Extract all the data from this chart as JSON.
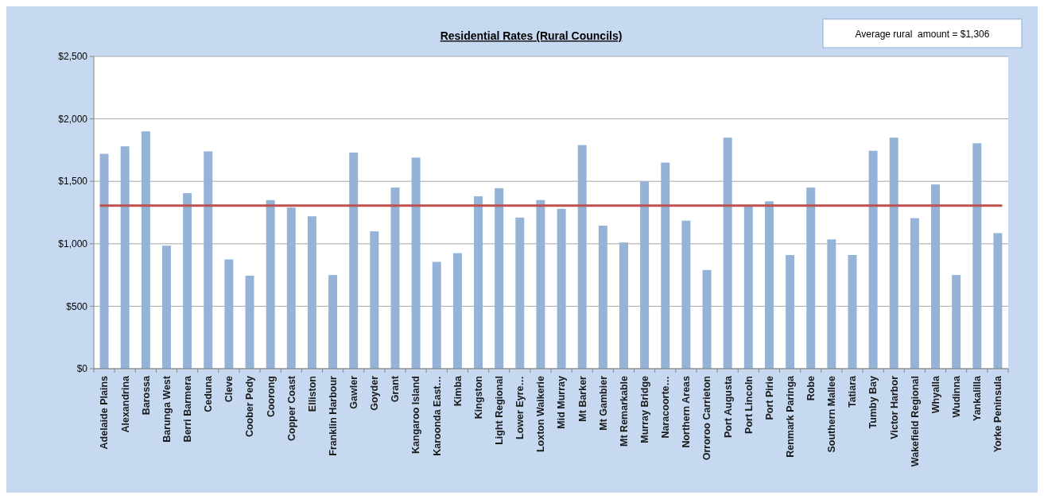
{
  "chart_data": {
    "type": "bar",
    "title": "Residential Rates (Rural Councils)",
    "categories": [
      "Adelaide Plains",
      "Alexandrina",
      "Barossa",
      "Barunga West",
      "Berri Barmera",
      "Ceduna",
      "Cleve",
      "Coober Pedy",
      "Coorong",
      "Copper Coast",
      "Elliston",
      "Franklin Harbour",
      "Gawler",
      "Goyder",
      "Grant",
      "Kangaroo Island",
      "Karoonda East…",
      "Kimba",
      "Kingston",
      "Light Regional",
      "Lower Eyre…",
      "Loxton Waikerie",
      "Mid Murray",
      "Mt Barker",
      "Mt Gambier",
      "Mt Remarkable",
      "Murray Bridge",
      "Naracoorte…",
      "Northern Areas",
      "Orroroo Carrieton",
      "Port Augusta",
      "Port Lincoln",
      "Port Pirie",
      "Renmark Paringa",
      "Robe",
      "Southern Mallee",
      "Tatiara",
      "Tumby Bay",
      "Victor Harbor",
      "Wakefield Regional",
      "Whyalla",
      "Wudinna",
      "Yankalilla",
      "Yorke Peninsula"
    ],
    "values": [
      1720,
      1780,
      1900,
      985,
      1405,
      1740,
      875,
      745,
      1350,
      1290,
      1220,
      750,
      1730,
      1100,
      1450,
      1690,
      855,
      925,
      1380,
      1445,
      1210,
      1350,
      1280,
      1790,
      1145,
      1010,
      1500,
      1650,
      1185,
      790,
      1850,
      1300,
      1340,
      910,
      1450,
      1035,
      910,
      1745,
      1850,
      1205,
      1475,
      750,
      1805,
      1085
    ],
    "color": "#95b3d7",
    "ylim": [
      0,
      2500
    ],
    "yticks": [
      {
        "value": 0,
        "label": "$0"
      },
      {
        "value": 500,
        "label": "$500"
      },
      {
        "value": 1000,
        "label": "$1,000"
      },
      {
        "value": 1500,
        "label": "$1,500"
      },
      {
        "value": 2000,
        "label": "$2,000"
      },
      {
        "value": 2500,
        "label": "$2,500"
      }
    ],
    "grid": "y",
    "ref_lines": [
      {
        "axis": "y",
        "value": 1306,
        "color": "#c0504d"
      }
    ],
    "annotations": [
      "Average rural  amount = $1,306"
    ]
  }
}
